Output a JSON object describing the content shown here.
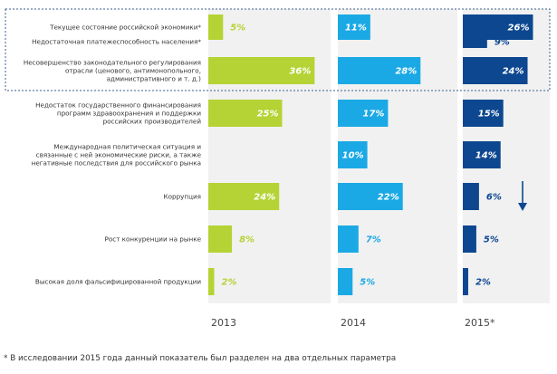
{
  "chart_data": {
    "type": "bar",
    "orientation": "horizontal",
    "categories": [
      [
        "Текущее состояние российской экономики*"
      ],
      [
        "Недостаточная платежеспособность населения*"
      ],
      [
        "Несовершенство законодательного регулирования",
        "отрасли (ценового, антимонопольного,",
        "административного и т. д.)"
      ],
      [
        "Недостаток государственного финансирования",
        "программ здравоохранения и поддержки",
        "российских производителей"
      ],
      [
        "Международная политическая ситуация и",
        "связанные с ней экономические риски, а также",
        "негативные последствия для российского рынка"
      ],
      [
        "Коррупция"
      ],
      [
        "Рост конкуренции на рынке"
      ],
      [
        "Высокая доля фальсифицированной продукции"
      ]
    ],
    "series": [
      {
        "name": "2013",
        "color": "#b5d334",
        "values": [
          5,
          null,
          36,
          25,
          null,
          24,
          8,
          2
        ],
        "labels": [
          "5%",
          "",
          "36%",
          "25%",
          "",
          "24%",
          "8%",
          "2%"
        ]
      },
      {
        "name": "2014",
        "color": "#1ba9e5",
        "values": [
          11,
          null,
          28,
          17,
          10,
          22,
          7,
          5
        ],
        "labels": [
          "11%",
          "",
          "28%",
          "17%",
          "10%",
          "22%",
          "7%",
          "5%"
        ]
      },
      {
        "name": "2015*",
        "color": "#0d4790",
        "values": [
          26,
          9,
          24,
          15,
          14,
          6,
          5,
          2
        ],
        "labels": [
          "26%",
          "9%",
          "24%",
          "15%",
          "14%",
          "6%",
          "5%",
          "2%"
        ]
      }
    ],
    "highlighted_categories": [
      0,
      1,
      2
    ],
    "annotation": "down-arrow-next-to-2015-corruption",
    "footnote": "* В исследовании 2015 года данный показатель был разделен на два отдельных параметра"
  }
}
